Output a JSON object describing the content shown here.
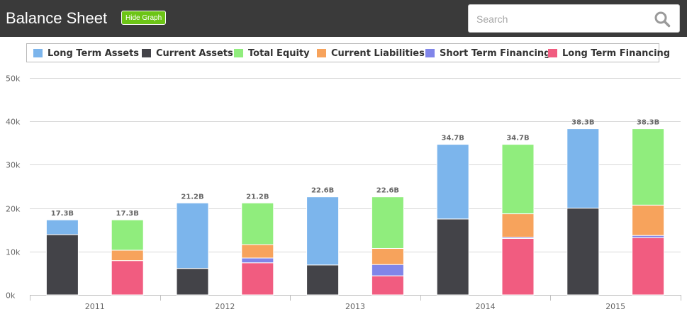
{
  "header": {
    "title": "Balance Sheet",
    "toggle_label": "Hide Graph",
    "search_placeholder": "Search",
    "search_icon": "search-icon"
  },
  "colors": {
    "header_bg": "#3a3a3a",
    "toggle_bg": "#6cc416"
  },
  "chart_data": {
    "type": "bar",
    "stacked": true,
    "categories": [
      "2011",
      "2012",
      "2013",
      "2014",
      "2015"
    ],
    "ylim": [
      0,
      50000
    ],
    "yticks": [
      0,
      10000,
      20000,
      30000,
      40000,
      50000
    ],
    "ytick_labels": [
      "0k",
      "10k",
      "20k",
      "30k",
      "40k",
      "50k"
    ],
    "grid": true,
    "legend_position": "top",
    "series": [
      {
        "name": "Long Term Assets",
        "stack": "assets",
        "color": "#7cb5ec",
        "values": [
          3400,
          15100,
          15700,
          17200,
          18300
        ]
      },
      {
        "name": "Current Assets",
        "stack": "assets",
        "color": "#434348",
        "values": [
          13900,
          6100,
          6900,
          17500,
          20000
        ]
      },
      {
        "name": "Total Equity",
        "stack": "liabilities",
        "color": "#90ed7d",
        "values": [
          7000,
          9600,
          11900,
          16000,
          17600
        ]
      },
      {
        "name": "Current Liabilities",
        "stack": "liabilities",
        "color": "#f7a35c",
        "values": [
          2400,
          3100,
          3700,
          5400,
          7000
        ]
      },
      {
        "name": "Short Term Financing",
        "stack": "liabilities",
        "color": "#8085e9",
        "values": [
          0,
          1100,
          2600,
          300,
          500
        ]
      },
      {
        "name": "Long Term Financing",
        "stack": "liabilities",
        "color": "#f15c80",
        "values": [
          7900,
          7400,
          4400,
          13000,
          13200
        ]
      }
    ],
    "totals": [
      {
        "assets": "17.3B",
        "liabilities": "17.3B"
      },
      {
        "assets": "21.2B",
        "liabilities": "21.2B"
      },
      {
        "assets": "22.6B",
        "liabilities": "22.6B"
      },
      {
        "assets": "34.7B",
        "liabilities": "34.7B"
      },
      {
        "assets": "38.3B",
        "liabilities": "38.3B"
      }
    ]
  }
}
